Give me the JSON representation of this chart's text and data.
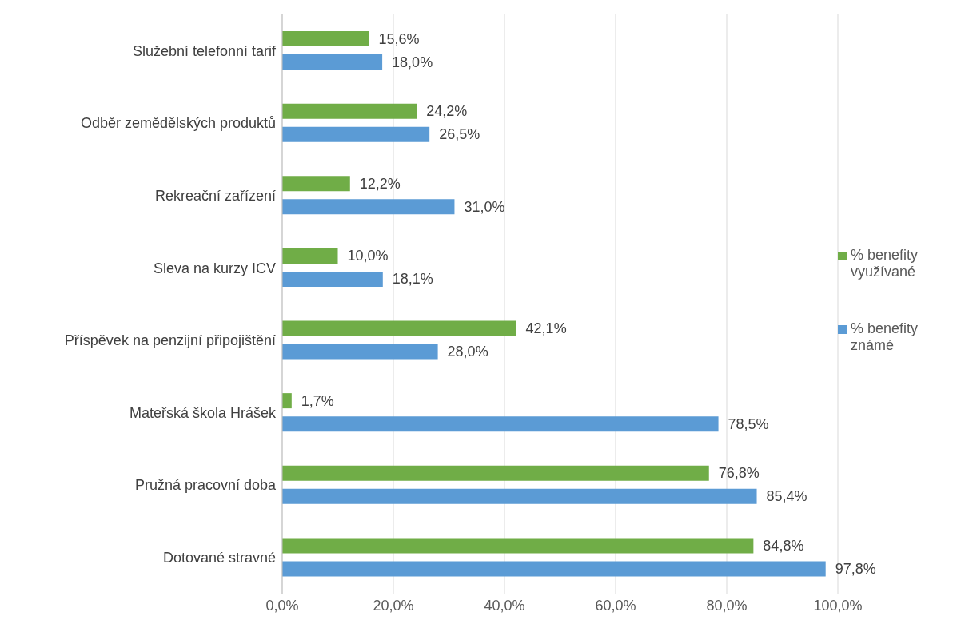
{
  "chart_data": {
    "type": "bar",
    "orientation": "horizontal",
    "categories": [
      "Služební telefonní tarif",
      "Odběr zemědělských produktů",
      "Rekreační zařízení",
      "Sleva na kurzy ICV",
      "Příspěvek na penzijní připojištění",
      "Mateřská škola Hrášek",
      "Pružná pracovní doba",
      "Dotované stravné"
    ],
    "series": [
      {
        "name": "% benefity využívané",
        "color": "#70ad47",
        "values": [
          15.6,
          24.2,
          12.2,
          10.0,
          42.1,
          1.7,
          76.8,
          84.8
        ],
        "value_labels": [
          "15,6%",
          "24,2%",
          "12,2%",
          "10,0%",
          "42,1%",
          "1,7%",
          "76,8%",
          "84,8%"
        ]
      },
      {
        "name": "% benefity známé",
        "color": "#5b9bd5",
        "values": [
          18.0,
          26.5,
          31.0,
          18.1,
          28.0,
          78.5,
          85.4,
          97.8
        ],
        "value_labels": [
          "18,0%",
          "26,5%",
          "31,0%",
          "18,1%",
          "28,0%",
          "78,5%",
          "85,4%",
          "97,8%"
        ]
      }
    ],
    "xlim": [
      0,
      100
    ],
    "xticks": [
      {
        "value": 0,
        "label": "0,0%"
      },
      {
        "value": 20,
        "label": "20,0%"
      },
      {
        "value": 40,
        "label": "40,0%"
      },
      {
        "value": 60,
        "label": "60,0%"
      },
      {
        "value": 80,
        "label": "80,0%"
      },
      {
        "value": 100,
        "label": "100,0%"
      }
    ],
    "grid": "x",
    "legend": "right"
  }
}
